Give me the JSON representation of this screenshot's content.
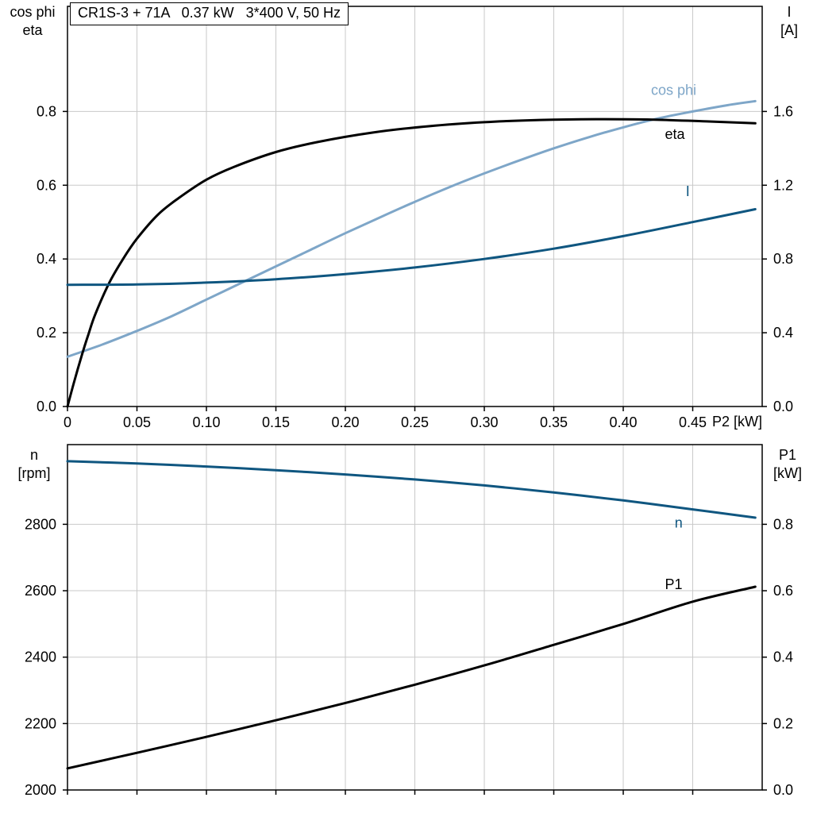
{
  "title_box": "CR1S-3 + 71A   0.37 kW   3*400 V, 50 Hz",
  "colors": {
    "black": "#000000",
    "light_blue": "#7ea6c8",
    "dark_blue": "#0f5680",
    "grid": "#c9c9c9",
    "frame": "#000000"
  },
  "chart_data": [
    {
      "type": "line",
      "id": "top",
      "xlabel": "P2 [kW]",
      "left_axis_label_lines": [
        "cos phi",
        "eta"
      ],
      "right_axis_label_lines": [
        "I",
        "[A]"
      ],
      "xlim": [
        0,
        0.5
      ],
      "ylim_left": [
        0,
        1.085
      ],
      "ylim_right": [
        0,
        2.17
      ],
      "xtick_vals": [
        0,
        0.05,
        0.1,
        0.15,
        0.2,
        0.25,
        0.3,
        0.35,
        0.4,
        0.45
      ],
      "xtick_labels": [
        "0",
        "0.05",
        "0.10",
        "0.15",
        "0.20",
        "0.25",
        "0.30",
        "0.35",
        "0.40",
        "0.45"
      ],
      "ytick_left_vals": [
        0,
        0.2,
        0.4,
        0.6,
        0.8
      ],
      "ytick_left_labels": [
        "0.0",
        "0.2",
        "0.4",
        "0.6",
        "0.8"
      ],
      "ytick_right_vals": [
        0,
        0.4,
        0.8,
        1.2,
        1.6
      ],
      "ytick_right_labels": [
        "0.0",
        "0.4",
        "0.8",
        "1.2",
        "1.6"
      ],
      "grid": true,
      "legend_position": "on-curve",
      "series": [
        {
          "name": "cos-phi",
          "label": "cos phi",
          "axis": "left",
          "color_key": "light_blue",
          "label_at": [
            0.42,
            0.845
          ],
          "x": [
            0,
            0.025,
            0.05,
            0.075,
            0.1,
            0.125,
            0.15,
            0.175,
            0.2,
            0.225,
            0.25,
            0.275,
            0.3,
            0.325,
            0.35,
            0.375,
            0.4,
            0.425,
            0.45,
            0.475,
            0.495
          ],
          "values": [
            0.135,
            0.168,
            0.205,
            0.245,
            0.29,
            0.335,
            0.38,
            0.425,
            0.47,
            0.513,
            0.555,
            0.595,
            0.632,
            0.667,
            0.7,
            0.73,
            0.757,
            0.781,
            0.8,
            0.817,
            0.828
          ]
        },
        {
          "name": "eta",
          "label": "eta",
          "axis": "left",
          "color_key": "black",
          "label_at": [
            0.43,
            0.725
          ],
          "x": [
            0,
            0.005,
            0.01,
            0.015,
            0.02,
            0.03,
            0.04,
            0.05,
            0.065,
            0.08,
            0.1,
            0.12,
            0.15,
            0.18,
            0.22,
            0.26,
            0.3,
            0.34,
            0.38,
            0.42,
            0.46,
            0.495
          ],
          "values": [
            0,
            0.07,
            0.135,
            0.195,
            0.25,
            0.335,
            0.4,
            0.455,
            0.52,
            0.565,
            0.615,
            0.65,
            0.69,
            0.717,
            0.743,
            0.76,
            0.771,
            0.777,
            0.779,
            0.778,
            0.773,
            0.768
          ]
        },
        {
          "name": "current",
          "label": "I",
          "axis": "right",
          "color_key": "dark_blue",
          "label_at": [
            0.445,
            1.14
          ],
          "x": [
            0,
            0.05,
            0.1,
            0.15,
            0.2,
            0.25,
            0.3,
            0.35,
            0.4,
            0.45,
            0.495
          ],
          "values": [
            0.66,
            0.662,
            0.672,
            0.69,
            0.718,
            0.754,
            0.8,
            0.856,
            0.924,
            1.0,
            1.07
          ]
        }
      ]
    },
    {
      "type": "line",
      "id": "bottom",
      "xlabel": "",
      "left_axis_label_lines": [
        "n",
        "[rpm]"
      ],
      "right_axis_label_lines": [
        "P1",
        "[kW]"
      ],
      "xlim": [
        0,
        0.5
      ],
      "ylim_left": [
        2000,
        3040
      ],
      "ylim_right": [
        0,
        1.04
      ],
      "xtick_vals": [
        0,
        0.05,
        0.1,
        0.15,
        0.2,
        0.25,
        0.3,
        0.35,
        0.4,
        0.45
      ],
      "xtick_labels": [],
      "ytick_left_vals": [
        2000,
        2200,
        2400,
        2600,
        2800
      ],
      "ytick_left_labels": [
        "2000",
        "2200",
        "2400",
        "2600",
        "2800"
      ],
      "ytick_right_vals": [
        0,
        0.2,
        0.4,
        0.6,
        0.8
      ],
      "ytick_right_labels": [
        "0.0",
        "0.2",
        "0.4",
        "0.6",
        "0.8"
      ],
      "grid": true,
      "legend_position": "on-curve",
      "series": [
        {
          "name": "speed",
          "label": "n",
          "axis": "left",
          "color_key": "dark_blue",
          "label_at": [
            0.437,
            2790
          ],
          "x": [
            0,
            0.05,
            0.1,
            0.15,
            0.2,
            0.25,
            0.3,
            0.35,
            0.4,
            0.45,
            0.495
          ],
          "values": [
            2990,
            2983,
            2974,
            2963,
            2950,
            2935,
            2917,
            2896,
            2872,
            2845,
            2820
          ]
        },
        {
          "name": "p1",
          "label": "P1",
          "axis": "right",
          "color_key": "black",
          "label_at": [
            0.43,
            0.605
          ],
          "x": [
            0,
            0.05,
            0.1,
            0.15,
            0.2,
            0.25,
            0.3,
            0.35,
            0.4,
            0.45,
            0.495
          ],
          "values": [
            0.065,
            0.112,
            0.16,
            0.21,
            0.262,
            0.317,
            0.375,
            0.437,
            0.5,
            0.567,
            0.612
          ]
        }
      ]
    }
  ]
}
